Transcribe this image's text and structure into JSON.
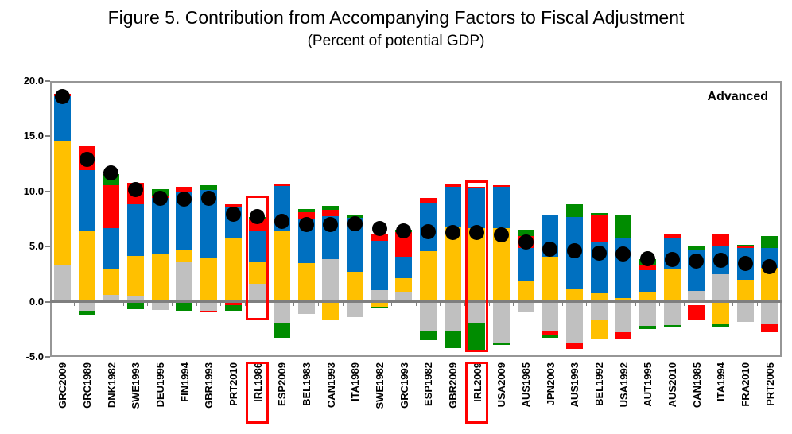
{
  "chart_data": {
    "type": "bar",
    "stacked": true,
    "title": "Figure 5. Contribution from Accompanying Factors to Fiscal Adjustment",
    "subtitle": "(Percent of potential GDP)",
    "annotation": "Advanced",
    "ylim": [
      -5,
      20
    ],
    "yticks": [
      "20.0",
      "15.0",
      "10.0",
      "5.0",
      "0.0",
      "-5.0"
    ],
    "ytick_values": [
      20,
      15,
      10,
      5,
      0,
      -5
    ],
    "grid": false,
    "legend": "none",
    "colors": {
      "gray": "#C0C0C0",
      "yellow": "#FFC000",
      "blue": "#0070C0",
      "red": "#FF0000",
      "green": "#008C00",
      "gap": "transparent",
      "dot": "#000000",
      "frame": "#969696",
      "highlight": "#FF0000"
    },
    "bars": [
      {
        "label": "GRC2009",
        "dot": 18.6,
        "pos": [
          [
            "gray",
            3.3
          ],
          [
            "yellow",
            11.3
          ],
          [
            "blue",
            4.05
          ],
          [
            "red",
            0.2
          ]
        ],
        "neg": []
      },
      {
        "label": "GRC1989",
        "dot": 12.9,
        "pos": [
          [
            "yellow",
            6.4
          ],
          [
            "blue",
            5.5
          ],
          [
            "red",
            2.2
          ]
        ],
        "neg": [
          [
            "gray",
            0.85
          ],
          [
            "green",
            0.35
          ]
        ]
      },
      {
        "label": "DNK1982",
        "dot": 11.7,
        "pos": [
          [
            "gray",
            0.6
          ],
          [
            "yellow",
            2.35
          ],
          [
            "blue",
            3.7
          ],
          [
            "red",
            3.9
          ],
          [
            "green",
            1.05
          ]
        ],
        "neg": []
      },
      {
        "label": "SWE1993",
        "dot": 10.2,
        "pos": [
          [
            "gray",
            0.55
          ],
          [
            "yellow",
            3.6
          ],
          [
            "blue",
            4.65
          ],
          [
            "red",
            2.0
          ]
        ],
        "neg": [
          [
            "green",
            0.7
          ]
        ]
      },
      {
        "label": "DEU1995",
        "dot": 9.4,
        "pos": [
          [
            "yellow",
            4.3
          ],
          [
            "blue",
            5.1
          ],
          [
            "red",
            0.2
          ],
          [
            "green",
            0.6
          ]
        ],
        "neg": [
          [
            "gray",
            0.75
          ]
        ]
      },
      {
        "label": "FIN1994",
        "dot": 9.3,
        "pos": [
          [
            "gray",
            3.55
          ],
          [
            "yellow",
            1.1
          ],
          [
            "blue",
            5.35
          ],
          [
            "red",
            0.4
          ]
        ],
        "neg": [
          [
            "green",
            0.85
          ]
        ]
      },
      {
        "label": "GBR1993",
        "dot": 9.4,
        "pos": [
          [
            "yellow",
            3.95
          ],
          [
            "blue",
            6.15
          ],
          [
            "green",
            0.45
          ]
        ],
        "neg": [
          [
            "gray",
            0.85
          ],
          [
            "red",
            0.15
          ]
        ]
      },
      {
        "label": "PRT2010",
        "dot": 7.9,
        "pos": [
          [
            "yellow",
            5.75
          ],
          [
            "blue",
            2.85
          ],
          [
            "red",
            0.2
          ]
        ],
        "neg": [
          [
            "red",
            0.3
          ],
          [
            "green",
            0.5
          ]
        ]
      },
      {
        "label": "IRL1986",
        "dot": 7.75,
        "highlight": true,
        "pos": [
          [
            "gray",
            1.65
          ],
          [
            "yellow",
            1.9
          ],
          [
            "blue",
            2.8
          ],
          [
            "red",
            1.2
          ],
          [
            "green",
            0.15
          ]
        ],
        "neg": []
      },
      {
        "label": "ESP2009",
        "dot": 7.3,
        "pos": [
          [
            "yellow",
            6.45
          ],
          [
            "blue",
            4.05
          ],
          [
            "red",
            0.2
          ]
        ],
        "neg": [
          [
            "gray",
            1.9
          ],
          [
            "green",
            1.35
          ]
        ]
      },
      {
        "label": "BEL1983",
        "dot": 7.0,
        "pos": [
          [
            "yellow",
            3.5
          ],
          [
            "blue",
            3.95
          ],
          [
            "red",
            0.65
          ],
          [
            "green",
            0.3
          ]
        ],
        "neg": [
          [
            "gray",
            1.1
          ]
        ]
      },
      {
        "label": "CAN1993",
        "dot": 7.0,
        "pos": [
          [
            "gray",
            3.85
          ],
          [
            "blue",
            3.9
          ],
          [
            "red",
            0.55
          ],
          [
            "green",
            0.4
          ]
        ],
        "neg": [
          [
            "yellow",
            1.6
          ]
        ]
      },
      {
        "label": "ITA1989",
        "dot": 7.1,
        "pos": [
          [
            "yellow",
            2.7
          ],
          [
            "blue",
            4.9
          ],
          [
            "green",
            0.3
          ]
        ],
        "neg": [
          [
            "gray",
            1.4
          ]
        ]
      },
      {
        "label": "SWE1982",
        "dot": 6.65,
        "pos": [
          [
            "gray",
            1.05
          ],
          [
            "blue",
            4.5
          ],
          [
            "red",
            0.55
          ]
        ],
        "neg": [
          [
            "yellow",
            0.45
          ],
          [
            "green",
            0.15
          ]
        ]
      },
      {
        "label": "GRC1993",
        "dot": 6.4,
        "pos": [
          [
            "gray",
            0.9
          ],
          [
            "yellow",
            1.2
          ],
          [
            "blue",
            2.0
          ],
          [
            "red",
            2.2
          ],
          [
            "green",
            0.2
          ]
        ],
        "neg": []
      },
      {
        "label": "ESP1982",
        "dot": 6.35,
        "pos": [
          [
            "yellow",
            4.55
          ],
          [
            "blue",
            4.35
          ],
          [
            "red",
            0.5
          ]
        ],
        "neg": [
          [
            "gray",
            2.7
          ],
          [
            "green",
            0.8
          ]
        ]
      },
      {
        "label": "GBR2009",
        "dot": 6.3,
        "pos": [
          [
            "yellow",
            6.8
          ],
          [
            "blue",
            3.65
          ],
          [
            "red",
            0.2
          ]
        ],
        "neg": [
          [
            "gray",
            2.6
          ],
          [
            "green",
            1.6
          ]
        ]
      },
      {
        "label": "IRL2009",
        "dot": 6.25,
        "highlight": true,
        "pos": [
          [
            "yellow",
            6.7
          ],
          [
            "blue",
            3.6
          ],
          [
            "red",
            0.15
          ]
        ],
        "neg": [
          [
            "gray",
            1.9
          ],
          [
            "green",
            2.45
          ]
        ]
      },
      {
        "label": "USA2009",
        "dot": 6.05,
        "pos": [
          [
            "yellow",
            6.7
          ],
          [
            "blue",
            3.7
          ],
          [
            "red",
            0.15
          ]
        ],
        "neg": [
          [
            "gray",
            3.7
          ],
          [
            "green",
            0.25
          ]
        ]
      },
      {
        "label": "AUS1985",
        "dot": 5.4,
        "pos": [
          [
            "yellow",
            1.9
          ],
          [
            "blue",
            2.95
          ],
          [
            "red",
            1.1
          ],
          [
            "green",
            0.6
          ]
        ],
        "neg": [
          [
            "gray",
            1.0
          ]
        ]
      },
      {
        "label": "JPN2003",
        "dot": 4.75,
        "pos": [
          [
            "yellow",
            4.05
          ],
          [
            "blue",
            3.75
          ]
        ],
        "neg": [
          [
            "gray",
            2.6
          ],
          [
            "red",
            0.45
          ],
          [
            "green",
            0.2
          ]
        ]
      },
      {
        "label": "AUS1993",
        "dot": 4.65,
        "pos": [
          [
            "yellow",
            1.15
          ],
          [
            "blue",
            6.5
          ],
          [
            "green",
            1.15
          ]
        ],
        "neg": [
          [
            "gray",
            3.7
          ],
          [
            "red",
            0.55
          ]
        ]
      },
      {
        "label": "BEL1992",
        "dot": 4.4,
        "pos": [
          [
            "yellow",
            0.75
          ],
          [
            "blue",
            4.7
          ],
          [
            "red",
            2.35
          ],
          [
            "green",
            0.25
          ]
        ],
        "neg": [
          [
            "gray",
            1.65
          ],
          [
            "yellow",
            1.8
          ]
        ]
      },
      {
        "label": "USA1992",
        "dot": 4.3,
        "pos": [
          [
            "yellow",
            0.3
          ],
          [
            "blue",
            5.45
          ],
          [
            "green",
            2.05
          ]
        ],
        "neg": [
          [
            "gray",
            2.75
          ],
          [
            "red",
            0.6
          ]
        ]
      },
      {
        "label": "AUT1995",
        "dot": 3.9,
        "pos": [
          [
            "yellow",
            0.9
          ],
          [
            "blue",
            1.95
          ],
          [
            "red",
            0.45
          ],
          [
            "green",
            0.55
          ]
        ],
        "neg": [
          [
            "gray",
            2.2
          ],
          [
            "green",
            0.25
          ]
        ]
      },
      {
        "label": "AUS2010",
        "dot": 3.8,
        "pos": [
          [
            "yellow",
            2.95
          ],
          [
            "blue",
            2.75
          ],
          [
            "red",
            0.45
          ]
        ],
        "neg": [
          [
            "gray",
            2.15
          ],
          [
            "green",
            0.15
          ]
        ]
      },
      {
        "label": "CAN1985",
        "dot": 3.7,
        "pos": [
          [
            "gray",
            0.95
          ],
          [
            "blue",
            3.75
          ],
          [
            "green",
            0.3
          ]
        ],
        "neg": [
          [
            "gap",
            0.35
          ],
          [
            "red",
            1.3
          ]
        ]
      },
      {
        "label": "ITA1994",
        "dot": 3.75,
        "pos": [
          [
            "gray",
            2.5
          ],
          [
            "blue",
            2.6
          ],
          [
            "red",
            1.05
          ]
        ],
        "neg": [
          [
            "yellow",
            2.05
          ],
          [
            "green",
            0.2
          ]
        ]
      },
      {
        "label": "FRA2010",
        "dot": 3.45,
        "pos": [
          [
            "yellow",
            2.0
          ],
          [
            "blue",
            2.9
          ],
          [
            "red",
            0.15
          ],
          [
            "green",
            0.1
          ]
        ],
        "neg": [
          [
            "gray",
            1.8
          ]
        ]
      },
      {
        "label": "PRT2005",
        "dot": 3.2,
        "pos": [
          [
            "yellow",
            3.1
          ],
          [
            "blue",
            1.8
          ],
          [
            "green",
            1.05
          ]
        ],
        "neg": [
          [
            "gray",
            2.0
          ],
          [
            "red",
            0.75
          ]
        ]
      }
    ],
    "highlight_boxes": [
      {
        "label": "IRL1986",
        "top": 9.6,
        "bottom": -1.7
      },
      {
        "label": "IRL2009",
        "top": 11.0,
        "bottom": -4.55
      }
    ]
  }
}
